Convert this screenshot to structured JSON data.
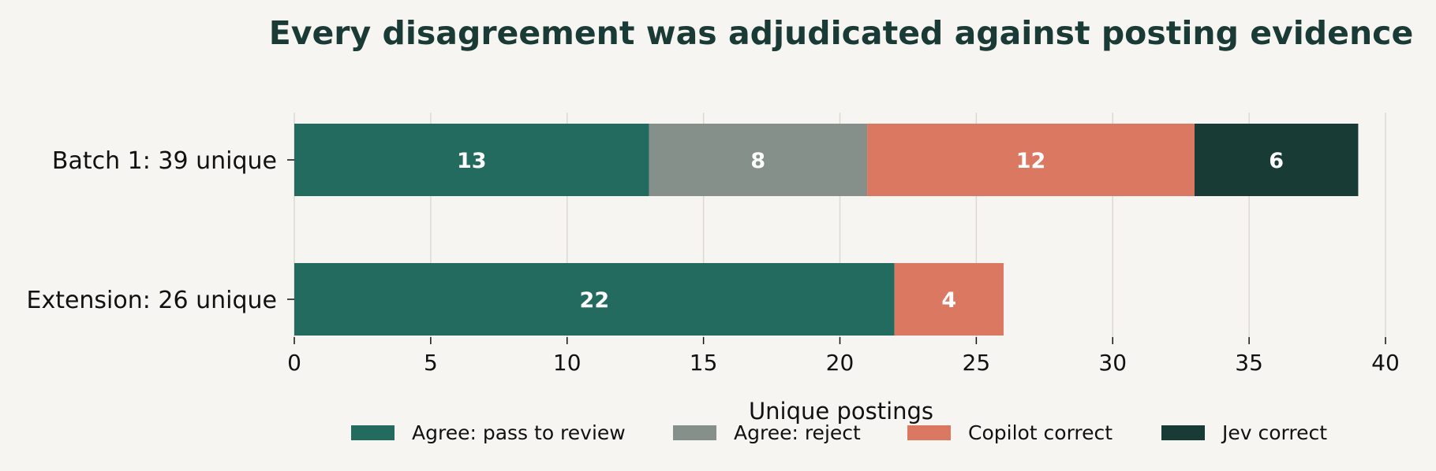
{
  "chart_data": {
    "type": "bar",
    "orientation": "horizontal",
    "stacked": true,
    "title": "Every disagreement was adjudicated against posting evidence",
    "xlabel": "Unique postings",
    "ylabel": "",
    "xlim": [
      0,
      40
    ],
    "xticks": [
      0,
      5,
      10,
      15,
      20,
      25,
      30,
      35,
      40
    ],
    "grid": "vertical",
    "legend_position": "bottom",
    "categories": [
      "Batch 1: 39 unique",
      "Extension: 26 unique"
    ],
    "series": [
      {
        "name": "Agree: pass to review",
        "color": "#246b5f",
        "values": [
          13,
          22
        ]
      },
      {
        "name": "Agree: reject",
        "color": "#85908a",
        "values": [
          8,
          0
        ]
      },
      {
        "name": "Copilot correct",
        "color": "#db7861",
        "values": [
          12,
          4
        ]
      },
      {
        "name": "Jev correct",
        "color": "#183b35",
        "values": [
          6,
          0
        ]
      }
    ]
  }
}
